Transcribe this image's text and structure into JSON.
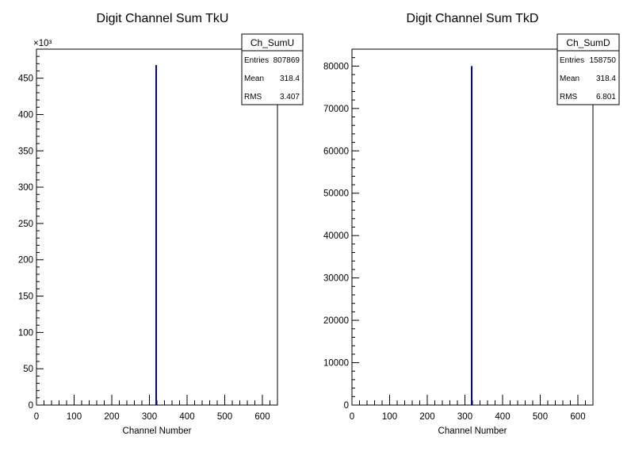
{
  "chart_data": [
    {
      "type": "bar",
      "title": "Digit Channel Sum TkU",
      "xlabel": "Channel Number",
      "ylabel": "",
      "xlim": [
        0,
        640
      ],
      "ylim": [
        0,
        490
      ],
      "y_exponent_label": "×10³",
      "x_ticks": [
        "0",
        "100",
        "200",
        "300",
        "400",
        "500",
        "600"
      ],
      "y_ticks": [
        "0",
        "50",
        "100",
        "150",
        "200",
        "250",
        "300",
        "350",
        "400",
        "450"
      ],
      "x": [
        318
      ],
      "values": [
        468
      ],
      "color": "#000080",
      "stats_box": {
        "name": "Ch_SumU",
        "rows": [
          {
            "label": "Entries",
            "value": "807869"
          },
          {
            "label": "Mean",
            "value": "318.4"
          },
          {
            "label": "RMS",
            "value": "3.407"
          }
        ]
      }
    },
    {
      "type": "bar",
      "title": "Digit Channel Sum TkD",
      "xlabel": "Channel Number",
      "ylabel": "",
      "xlim": [
        0,
        640
      ],
      "ylim": [
        0,
        84000
      ],
      "y_exponent_label": "",
      "x_ticks": [
        "0",
        "100",
        "200",
        "300",
        "400",
        "500",
        "600"
      ],
      "y_ticks": [
        "0",
        "10000",
        "20000",
        "30000",
        "40000",
        "50000",
        "60000",
        "70000",
        "80000"
      ],
      "x": [
        318
      ],
      "values": [
        80000
      ],
      "color": "#000080",
      "stats_box": {
        "name": "Ch_SumD",
        "rows": [
          {
            "label": "Entries",
            "value": "158750"
          },
          {
            "label": "Mean",
            "value": "318.4"
          },
          {
            "label": "RMS",
            "value": "6.801"
          }
        ]
      }
    }
  ]
}
